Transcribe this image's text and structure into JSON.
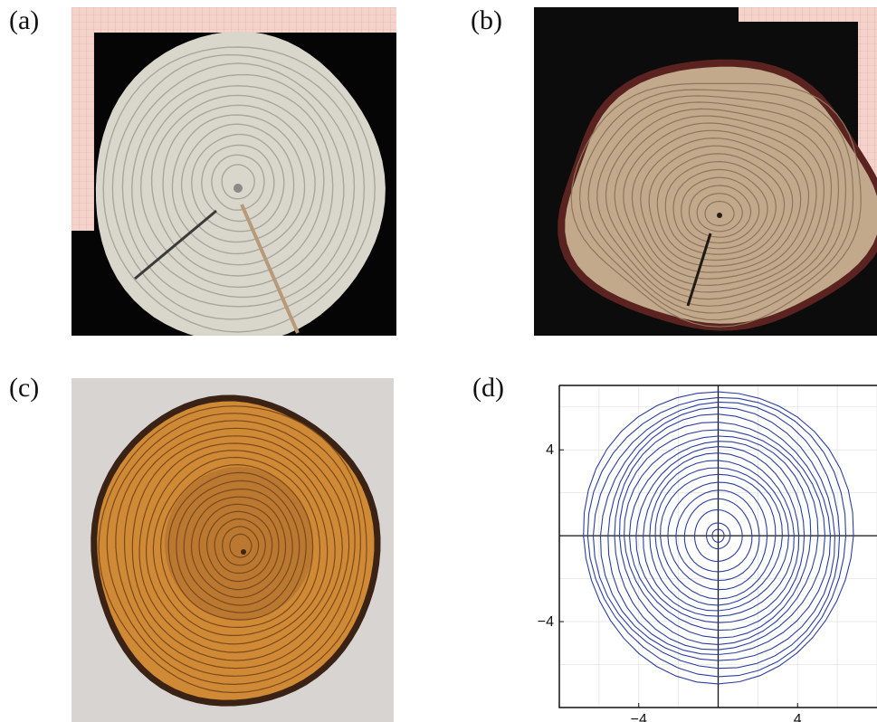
{
  "panels": [
    {
      "label": "(a)"
    },
    {
      "label": "(b)"
    },
    {
      "label": "(c)"
    },
    {
      "label": "(d)"
    }
  ],
  "colors": {
    "plot_rings": "#2c3e9e",
    "axes": "#111111",
    "grid": "#e4e4e4",
    "graph_paper": "#f2cfc6",
    "wood_a": "#d8d6cc",
    "wood_b": "#b59e83",
    "wood_c": "#c98836"
  },
  "chart_data": {
    "type": "line",
    "description_ticks": true,
    "x_ticks": [
      "−4",
      "4"
    ],
    "y_ticks": [
      "4",
      "−4"
    ],
    "x_tick_values": [
      -4,
      4
    ],
    "y_tick_values": [
      4,
      -4
    ],
    "xlim": [
      -8,
      8
    ],
    "ylim": [
      -8,
      7
    ],
    "grid": true,
    "series_radii": [
      0.3,
      0.6,
      1.2,
      1.7,
      2.1,
      2.5,
      2.9,
      3.2,
      3.5,
      3.8,
      4.1,
      4.4,
      4.7,
      5.0,
      5.3,
      5.6,
      5.9,
      6.2,
      6.5,
      6.8
    ]
  }
}
